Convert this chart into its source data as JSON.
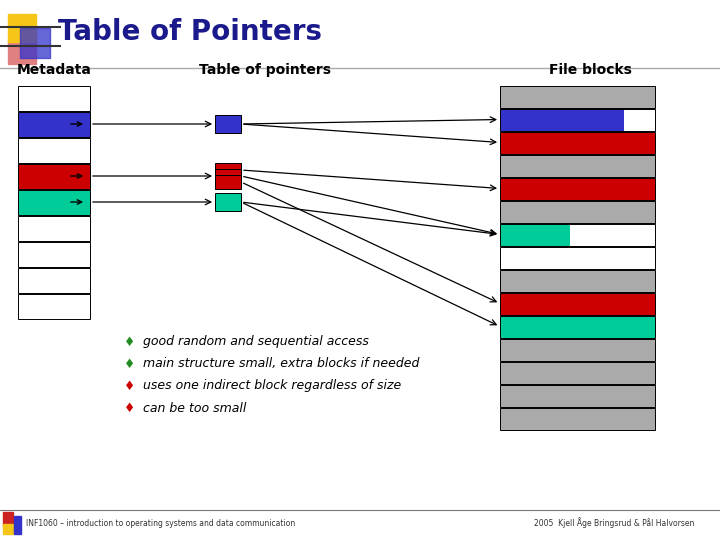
{
  "title": "Table of Pointers",
  "title_color": "#1a1a8c",
  "bg_color": "#ffffff",
  "footer_left": "INF1060 – introduction to operating systems and data communication",
  "footer_right": "2005  Kjell Åge Bringsrud & Pål Halvorsen",
  "label_metadata": "Metadata",
  "label_table": "Table of pointers",
  "label_fileblocks": "File blocks",
  "meta_row_colors": [
    "#ffffff",
    "#3333cc",
    "#ffffff",
    "#cc0000",
    "#00cc99",
    "#ffffff",
    "#ffffff",
    "#ffffff",
    "#ffffff"
  ],
  "fb_row_colors": [
    "#aaaaaa",
    "#3333cc",
    "#cc0000",
    "#aaaaaa",
    "#cc0000",
    "#aaaaaa",
    "#00cc99",
    "#ffffff",
    "#aaaaaa",
    "#cc0000",
    "#00cc99",
    "#aaaaaa",
    "#aaaaaa",
    "#aaaaaa",
    "#aaaaaa"
  ],
  "fb_split_rows": {
    "1": {
      "left_color": "#3333cc",
      "right_color": "#ffffff",
      "split": 0.8
    },
    "6": {
      "left_color": "#00cc99",
      "right_color": "#ffffff",
      "split": 0.45
    }
  },
  "bullets": [
    {
      "color": "#228B22",
      "text": "good random and sequential access"
    },
    {
      "color": "#228B22",
      "text": "main structure small, extra blocks if needed"
    },
    {
      "color": "#cc0000",
      "text": "uses one indirect block regardless of size"
    },
    {
      "color": "#cc0000",
      "text": "can be too small"
    }
  ],
  "arrow_color": "black",
  "title_fontsize": 20,
  "header_fontsize": 10,
  "bullet_fontsize": 9
}
